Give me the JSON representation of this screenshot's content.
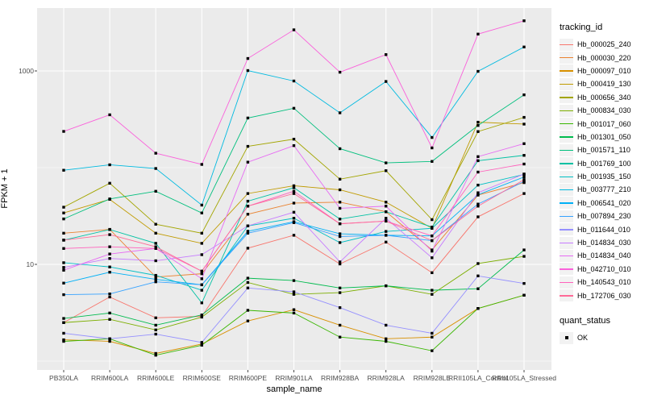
{
  "chart_data": {
    "type": "line",
    "title": "",
    "xlabel": "sample_name",
    "ylabel": "FPKM + 1",
    "y_scale": "log10",
    "ylim": [
      0.8,
      4500
    ],
    "grid": "on",
    "legend_position": "right",
    "panel_bg": "#EBEBEB",
    "grid_color": "#FFFFFF",
    "point_marker_color": "#000000",
    "y_ticks": [
      {
        "label": "1000",
        "value": 1000
      },
      {
        "label": "10",
        "value": 10
      }
    ],
    "y_minor_gridlines": [
      100,
      1
    ],
    "categories": [
      "PB350LA",
      "RRIM600LA",
      "RRIM600LE",
      "RRIM600SE",
      "RRIM600PE",
      "RRIM901LA",
      "RRIM928BA",
      "RRIM928LA",
      "RRIM928LE",
      "RRII105LA_Control",
      "RRII105LA_Stressed"
    ],
    "series": [
      {
        "name": "Hb_000025_240",
        "color": "#F8766D",
        "values": [
          2.5,
          4.6,
          2.8,
          2.9,
          14.7,
          20,
          10.1,
          17,
          8.2,
          31,
          54
        ]
      },
      {
        "name": "Hb_000030_220",
        "color": "#EA8331",
        "values": [
          21,
          23,
          7.4,
          8.0,
          33,
          43,
          44,
          35,
          14.1,
          52,
          70
        ]
      },
      {
        "name": "Hb_000097_010",
        "color": "#D89000",
        "values": [
          1.66,
          1.6,
          1.2,
          1.5,
          2.6,
          3.4,
          2.35,
          1.7,
          1.77,
          3.5,
          4.8
        ]
      },
      {
        "name": "Hb_000419_130",
        "color": "#C09B00",
        "values": [
          34,
          47,
          21,
          16.5,
          54,
          65,
          59,
          44,
          23.6,
          295,
          282
        ]
      },
      {
        "name": "Hb_000656_340",
        "color": "#A3A500",
        "values": [
          39,
          69,
          26,
          21,
          166,
          197,
          76,
          93,
          29,
          236,
          331
        ]
      },
      {
        "name": "Hb_000834_030",
        "color": "#7CAE00",
        "values": [
          2.5,
          2.7,
          2.1,
          2.85,
          6.5,
          4.9,
          5.1,
          6.0,
          4.9,
          10.2,
          12.1
        ]
      },
      {
        "name": "Hb_001017_060",
        "color": "#39B600",
        "values": [
          1.6,
          1.7,
          1.15,
          1.46,
          3.35,
          3.14,
          1.77,
          1.6,
          1.28,
          3.5,
          4.8
        ]
      },
      {
        "name": "Hb_001301_050",
        "color": "#00BB4E",
        "values": [
          2.76,
          3.14,
          2.35,
          3.0,
          7.2,
          6.8,
          5.7,
          6.0,
          5.4,
          5.6,
          14.1
        ]
      },
      {
        "name": "Hb_001571_110",
        "color": "#00BF7D",
        "values": [
          29.5,
          47.5,
          57,
          34,
          326,
          411,
          157,
          112,
          116,
          273,
          566
        ]
      },
      {
        "name": "Hb_001769_100",
        "color": "#00C1A3",
        "values": [
          17.8,
          22.9,
          16.5,
          4.0,
          45,
          62,
          29.4,
          35,
          24.3,
          118,
          134
        ]
      },
      {
        "name": "Hb_001935_150",
        "color": "#00BFC4",
        "values": [
          10.4,
          9.4,
          7.7,
          5.4,
          25,
          30,
          16.8,
          21.9,
          23.6,
          66,
          85
        ]
      },
      {
        "name": "Hb_003777_210",
        "color": "#00BAE0",
        "values": [
          94,
          107,
          98,
          41,
          1009,
          787,
          369,
          778,
          205,
          990,
          1768
        ]
      },
      {
        "name": "Hb_006541_020",
        "color": "#00B0F6",
        "values": [
          6.4,
          8.3,
          7.0,
          6.15,
          22,
          27.6,
          20.7,
          20,
          19.7,
          52.5,
          80
        ]
      },
      {
        "name": "Hb_007894_230",
        "color": "#35A2FF",
        "values": [
          4.86,
          4.95,
          6.6,
          6.15,
          21,
          27,
          19.4,
          20,
          17.6,
          42,
          72
        ]
      },
      {
        "name": "Hb_011644_010",
        "color": "#9590FF",
        "values": [
          1.94,
          1.7,
          1.9,
          1.56,
          5.7,
          5.2,
          3.57,
          2.35,
          1.94,
          7.6,
          6.35
        ]
      },
      {
        "name": "Hb_014834_030",
        "color": "#C77CFF",
        "values": [
          9.3,
          11.5,
          10.9,
          12.6,
          25,
          34.6,
          10.6,
          30,
          11.7,
          55,
          86
        ]
      },
      {
        "name": "Hb_014834_040",
        "color": "#E76BF3",
        "values": [
          8.7,
          12.8,
          14.6,
          7.1,
          114,
          169,
          38,
          40,
          13.7,
          130,
          177
        ]
      },
      {
        "name": "Hb_042710_010",
        "color": "#FA62DB",
        "values": [
          237,
          352,
          141,
          108,
          1345,
          2660,
          970,
          1475,
          160,
          2404,
          3300
        ]
      },
      {
        "name": "Hb_140543_010",
        "color": "#FF62BC",
        "values": [
          14.6,
          15.2,
          14.6,
          8.5,
          40,
          57,
          26.3,
          28,
          19.7,
          90,
          109
        ]
      },
      {
        "name": "Hb_172706_030",
        "color": "#FF6A98",
        "values": [
          17.8,
          20.3,
          15.2,
          8.5,
          40,
          54,
          26.3,
          28,
          17.6,
          40,
          75
        ]
      }
    ]
  },
  "legend": {
    "title": "tracking_id"
  },
  "legend2": {
    "title": "quant_status",
    "items": [
      {
        "label": "OK"
      }
    ]
  }
}
